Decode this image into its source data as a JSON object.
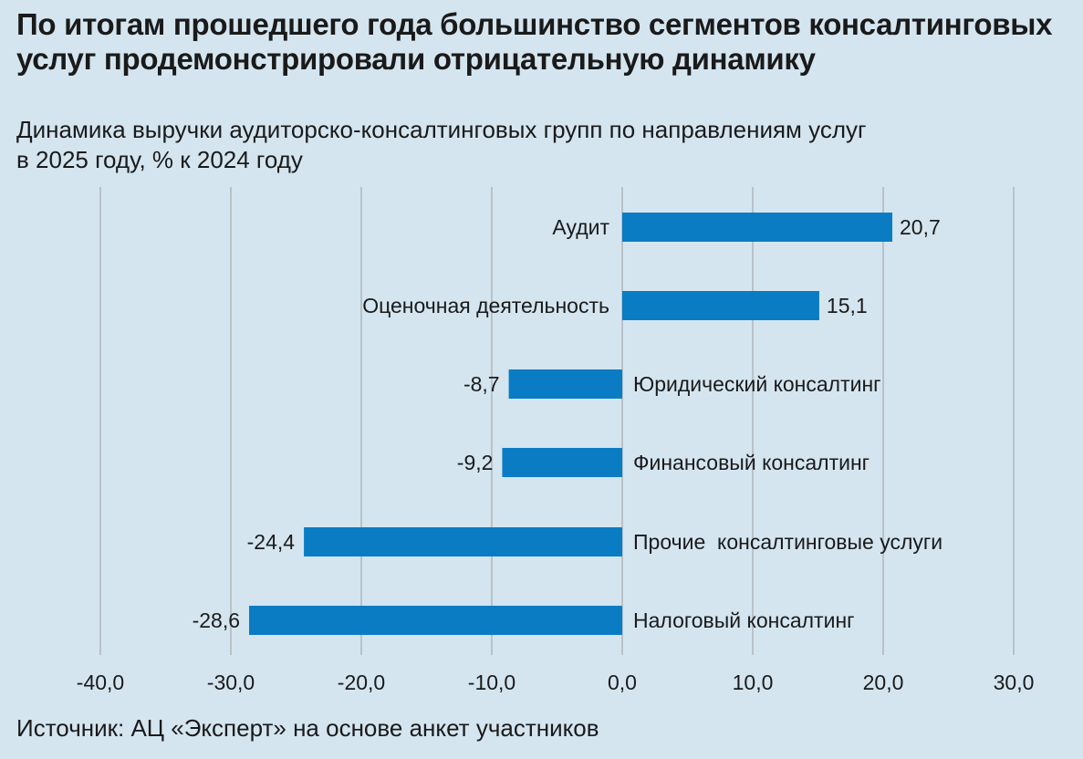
{
  "title": "По итогам прошедшего года большинство сегментов консалтинговых услуг продемонстрировали отрицательную динамику",
  "subtitle_line1": "Динамика выручки аудиторско-консалтинговых групп по направлениям услуг",
  "subtitle_line2": "в 2025 году, % к 2024 году",
  "source": "Источник: АЦ «Эксперт» на основе анкет участников",
  "colors": {
    "bar": "#0a7cc4",
    "grid": "#b9c2c8",
    "background": "#d4e5f0"
  },
  "chart_data": {
    "type": "bar",
    "orientation": "horizontal",
    "categories": [
      "Аудит",
      "Оценочная деятельность",
      "Юридический консалтинг",
      "Финансовый консалтинг",
      "Прочие  консалтинговые услуги",
      "Налоговый консалтинг"
    ],
    "values": [
      20.7,
      15.1,
      -8.7,
      -9.2,
      -24.4,
      -28.6
    ],
    "value_labels": [
      "20,7",
      "15,1",
      "-8,7",
      "-9,2",
      "-24,4",
      "-28,6"
    ],
    "xlim": [
      -40,
      30
    ],
    "xticks": [
      -40,
      -30,
      -20,
      -10,
      0,
      10,
      20,
      30
    ],
    "xtick_labels": [
      "-40,0",
      "-30,0",
      "-20,0",
      "-10,0",
      "0,0",
      "10,0",
      "20,0",
      "30,0"
    ],
    "grid": true,
    "legend": "none"
  }
}
